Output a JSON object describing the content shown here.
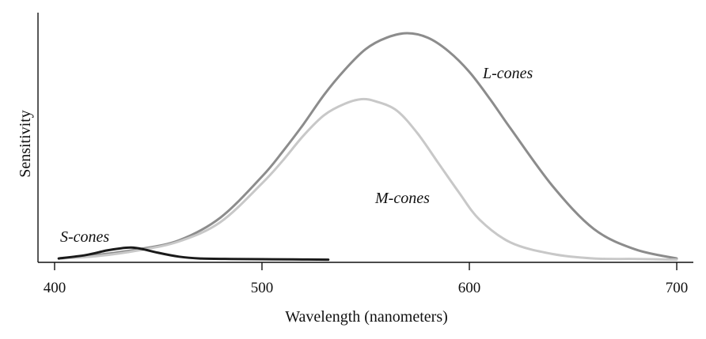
{
  "chart_data": {
    "type": "line",
    "xlabel": "Wavelength (nanometers)",
    "ylabel": "Sensitivity",
    "xlim": [
      392,
      708
    ],
    "ylim": [
      0,
      1.0
    ],
    "x_ticks": [
      400,
      500,
      600,
      700
    ],
    "x_tick_labels": [
      "400",
      "500",
      "600",
      "700"
    ],
    "y_ticks_shown": false,
    "grid": false,
    "legend": "none",
    "series": [
      {
        "name": "L-cones",
        "color": "#8c8c8c",
        "x": [
          402,
          420,
          440,
          460,
          480,
          500,
          510,
          520,
          530,
          540,
          550,
          560,
          570,
          580,
          590,
          600,
          610,
          620,
          640,
          660,
          680,
          700
        ],
        "y": [
          0.01,
          0.025,
          0.05,
          0.09,
          0.19,
          0.37,
          0.48,
          0.6,
          0.73,
          0.84,
          0.93,
          0.98,
          1.0,
          0.98,
          0.92,
          0.83,
          0.71,
          0.58,
          0.33,
          0.14,
          0.05,
          0.01
        ]
      },
      {
        "name": "M-cones",
        "color": "#c8c8c8",
        "x": [
          402,
          420,
          440,
          460,
          480,
          500,
          510,
          520,
          530,
          540,
          548,
          555,
          565,
          575,
          585,
          595,
          605,
          620,
          640,
          660,
          680,
          700
        ],
        "y": [
          0.01,
          0.02,
          0.045,
          0.085,
          0.17,
          0.34,
          0.44,
          0.55,
          0.64,
          0.69,
          0.71,
          0.7,
          0.66,
          0.56,
          0.43,
          0.3,
          0.18,
          0.08,
          0.03,
          0.01,
          0.008,
          0.005
        ]
      },
      {
        "name": "S-cones",
        "color": "#1a1a1a",
        "x": [
          402,
          415,
          425,
          432,
          437,
          442,
          450,
          460,
          470,
          485,
          500,
          515,
          532
        ],
        "y": [
          0.01,
          0.025,
          0.045,
          0.055,
          0.058,
          0.052,
          0.035,
          0.018,
          0.01,
          0.008,
          0.007,
          0.006,
          0.005
        ]
      }
    ],
    "annotations": [
      {
        "text": "L-cones",
        "series": "L-cones"
      },
      {
        "text": "M-cones",
        "series": "M-cones"
      },
      {
        "text": "S-cones",
        "series": "S-cones"
      }
    ]
  }
}
